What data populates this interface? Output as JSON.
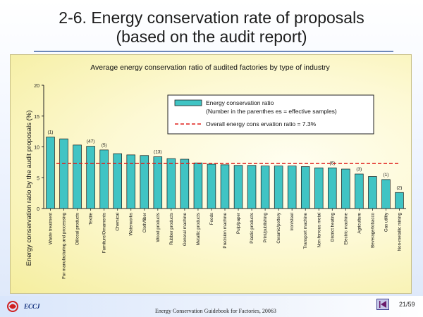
{
  "slide": {
    "title_line1": "2-6. Energy conservation rate of proposals",
    "title_line2": "(based on the audit report)",
    "footer": "Energy Conservation Guidebook for Factories, 20063",
    "page": "21/59",
    "logo_text": "ECCJ"
  },
  "chart_data": {
    "type": "bar",
    "title": "Average energy conservation ratio of audited factories by type of industry",
    "xlabel": "",
    "ylabel": "Energy conservation ratio by the audit proposals (%)",
    "ylim": [
      0,
      20
    ],
    "yticks": [
      "0",
      "5",
      "10",
      "15",
      "20"
    ],
    "grid": false,
    "legend_position": "top-right",
    "categories": [
      "Waste treatment",
      "Fur manufacturing and processing",
      "Oil/coal products",
      "Textile",
      "Furniture/Ornaments",
      "Chemical",
      "Waterworks",
      "Cloth/fiber",
      "Wood products",
      "Rubber products",
      "General machine",
      "Metallic products",
      "Foods",
      "Precision machine",
      "Pulp/paper",
      "Plastic products",
      "Print/publishing",
      "Ceramic/pottery",
      "Iron/steel",
      "Transport machine",
      "Non-ferrous metal",
      "District heating",
      "Electric machine",
      "Agriculture",
      "Beverage/tobacco",
      "Gas utility",
      "Non-metallic mining"
    ],
    "series": [
      {
        "name": "Energy conservation ratio",
        "color": "#40c4c4",
        "values": [
          11.6,
          11.3,
          10.3,
          10.1,
          9.5,
          8.9,
          8.7,
          8.6,
          8.4,
          8.1,
          8.0,
          7.4,
          7.2,
          7.1,
          7.0,
          7.0,
          6.9,
          6.9,
          6.9,
          6.8,
          6.6,
          6.6,
          6.4,
          5.6,
          5.2,
          4.7,
          2.6
        ]
      }
    ],
    "sample_notes": [
      "(1)",
      "",
      "",
      "(47)",
      "(5)",
      "",
      "",
      "",
      "(13)",
      "",
      "",
      "",
      "",
      "",
      "",
      "",
      "",
      "",
      "",
      "",
      "",
      "(6)",
      "",
      "(3)",
      "",
      "(1)",
      "(2)"
    ],
    "reference_line": {
      "label": "Overall energy cons ervation ratio = 7.3%",
      "value": 7.3,
      "color": "#e0201c"
    },
    "legend": {
      "bar_label": "Energy conservation ratio",
      "note": "(Number in the parenthes es = effective samples)",
      "line_label": "Overall energy cons ervation ratio = 7.3%"
    }
  }
}
